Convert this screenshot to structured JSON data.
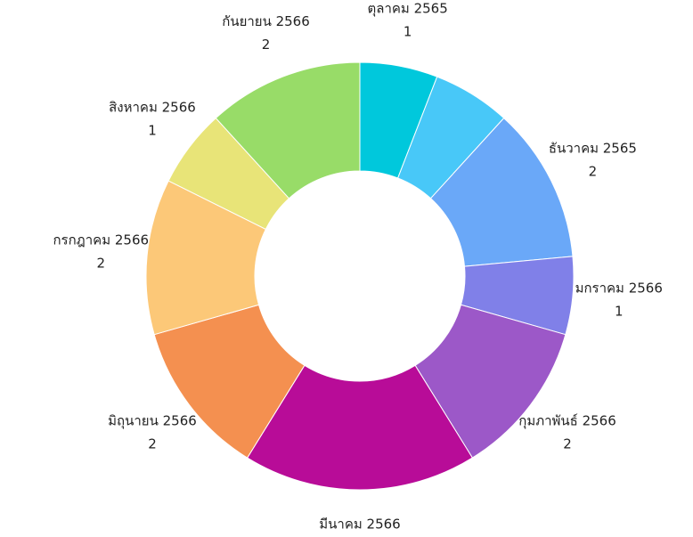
{
  "chart_data": {
    "type": "donut",
    "categories": [
      "ตุลาคม 2565",
      null,
      "ธันวาคม 2565",
      "มกราคม 2566",
      "กุมภาพันธ์ 2566",
      "มีนาคม 2566",
      "มิถุนายน 2566",
      "กรกฎาคม 2566",
      "สิงหาคม 2566",
      "กันยายน 2566"
    ],
    "values": [
      1,
      1,
      2,
      1,
      2,
      3,
      2,
      2,
      1,
      2
    ],
    "colors": [
      "#00c8dc",
      "#48c8f8",
      "#6aa8f8",
      "#8080e8",
      "#9c58c8",
      "#b80c98",
      "#f49050",
      "#fcc878",
      "#e8e478",
      "#98dc68"
    ]
  }
}
